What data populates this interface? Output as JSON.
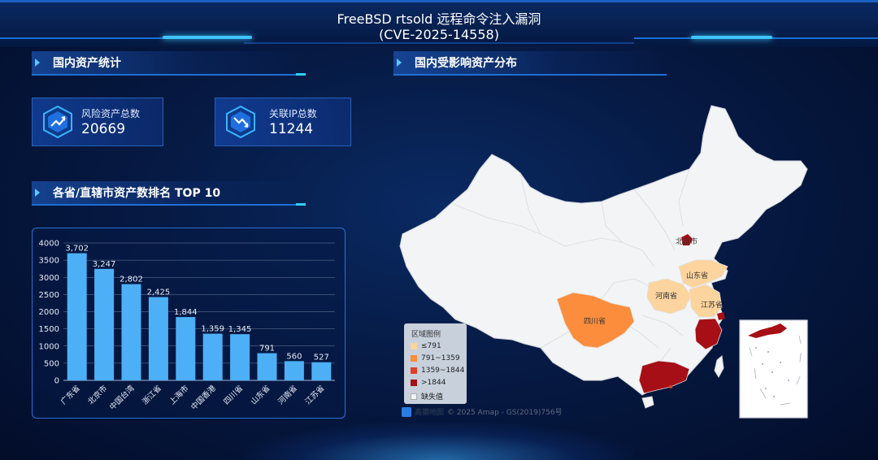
{
  "header": {
    "title_line1": "FreeBSD rtsold 远程命令注入漏洞",
    "title_line2": "(CVE-2025-14558)"
  },
  "sections": {
    "domestic_stats": "国内资产统计",
    "domestic_distribution": "国内受影响资产分布",
    "province_ranking": "各省/直辖市资产数排名 TOP 10"
  },
  "stats": {
    "risk_assets_label": "风险资产总数",
    "risk_assets_value": "20669",
    "related_ip_label": "关联IP总数",
    "related_ip_value": "11244"
  },
  "chart_data": {
    "type": "bar",
    "categories": [
      "广东省",
      "北京市",
      "中国台湾",
      "浙江省",
      "上海市",
      "中国香港",
      "四川省",
      "山东省",
      "河南省",
      "江苏省"
    ],
    "values": [
      3702,
      3247,
      2802,
      2425,
      1844,
      1359,
      1345,
      791,
      560,
      527
    ],
    "data_labels": [
      "3,702",
      "3,247",
      "2,802",
      "2,425",
      "1,844",
      "1,359",
      "1,345",
      "791",
      "560",
      "527"
    ],
    "yticks": [
      0,
      500,
      1000,
      1500,
      2000,
      2500,
      3000,
      3500,
      4000
    ],
    "ylim": [
      0,
      4000
    ],
    "grid": true,
    "bar_color": "#4db0f7"
  },
  "map": {
    "labels": {
      "beijing": "北京市",
      "shandong": "山东省",
      "henan": "河南省",
      "jiangsu": "江苏省",
      "sichuan": "四川省"
    },
    "legend": {
      "title": "区域图例",
      "items": [
        {
          "label": "≤791",
          "color": "#fdd49e"
        },
        {
          "label": "791~1359",
          "color": "#fc8d3c"
        },
        {
          "label": "1359~1844",
          "color": "#e0402a"
        },
        {
          "label": ">1844",
          "color": "#a50f15"
        },
        {
          "label": "缺失值",
          "color": "#f3f4f5"
        }
      ]
    },
    "attribution": {
      "brand": "高德地图",
      "text": "© 2025 Amap - GS(2019)756号"
    }
  }
}
